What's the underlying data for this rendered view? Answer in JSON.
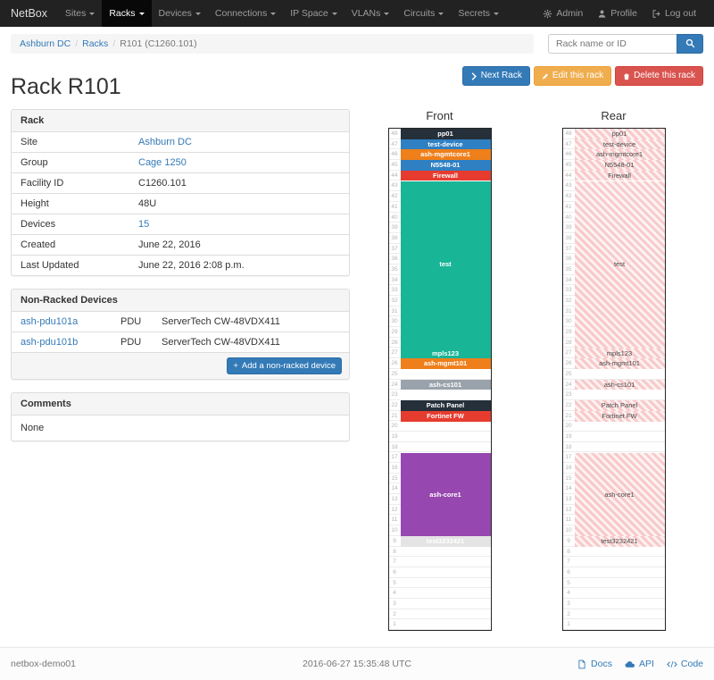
{
  "navbar": {
    "brand": "NetBox",
    "items": [
      {
        "label": "Sites",
        "active": false
      },
      {
        "label": "Racks",
        "active": true
      },
      {
        "label": "Devices",
        "active": false
      },
      {
        "label": "Connections",
        "active": false
      },
      {
        "label": "IP Space",
        "active": false
      },
      {
        "label": "VLANs",
        "active": false
      },
      {
        "label": "Circuits",
        "active": false
      },
      {
        "label": "Secrets",
        "active": false
      }
    ],
    "right_items": [
      {
        "label": "Admin",
        "icon": "gear-icon"
      },
      {
        "label": "Profile",
        "icon": "user-icon"
      },
      {
        "label": "Log out",
        "icon": "logout-icon"
      }
    ]
  },
  "breadcrumb": [
    "Ashburn DC",
    "Racks",
    "R101 (C1260.101)"
  ],
  "search": {
    "placeholder": "Rack name or ID"
  },
  "actions": {
    "next_label": "Next Rack",
    "edit_label": "Edit this rack",
    "delete_label": "Delete this rack"
  },
  "page_title": "Rack R101",
  "rack_panel": {
    "title": "Rack",
    "rows": [
      {
        "label": "Site",
        "value": "Ashburn DC",
        "is_link": true
      },
      {
        "label": "Group",
        "value": "Cage 1250",
        "is_link": true
      },
      {
        "label": "Facility ID",
        "value": "C1260.101",
        "is_link": false
      },
      {
        "label": "Height",
        "value": "48U",
        "is_link": false
      },
      {
        "label": "Devices",
        "value": "15",
        "is_link": true
      },
      {
        "label": "Created",
        "value": "June 22, 2016",
        "is_link": false
      },
      {
        "label": "Last Updated",
        "value": "June 22, 2016 2:08 p.m.",
        "is_link": false
      }
    ]
  },
  "non_racked_panel": {
    "title": "Non-Racked Devices",
    "devices": [
      {
        "name": "ash-pdu101a",
        "role": "PDU",
        "model": "ServerTech CW-48VDX411"
      },
      {
        "name": "ash-pdu101b",
        "role": "PDU",
        "model": "ServerTech CW-48VDX411"
      }
    ],
    "add_button_label": "Add a non-racked device"
  },
  "comments_panel": {
    "title": "Comments",
    "body": "None"
  },
  "elevations": {
    "front_title": "Front",
    "rear_title": "Rear",
    "total_units": 48,
    "devices": [
      {
        "name": "pp01",
        "top_unit": 48,
        "u_height": 1,
        "color": "#25303b"
      },
      {
        "name": "test-device",
        "top_unit": 47,
        "u_height": 1,
        "color": "#2f80c3"
      },
      {
        "name": "ash-mgmtcore1",
        "top_unit": 46,
        "u_height": 1,
        "color": "#ef7f1a"
      },
      {
        "name": "N5548-01",
        "top_unit": 45,
        "u_height": 1,
        "color": "#2f80c3"
      },
      {
        "name": "Firewall",
        "top_unit": 44,
        "u_height": 1,
        "color": "#e63c2f"
      },
      {
        "name": "test",
        "top_unit": 43,
        "u_height": 16,
        "color": "#19b597"
      },
      {
        "name": "mpls123",
        "top_unit": 27,
        "u_height": 1,
        "color": "#19b597"
      },
      {
        "name": "ash-mgmt101",
        "top_unit": 26,
        "u_height": 1,
        "color": "#ef7f1a"
      },
      {
        "name": "ash-cs101",
        "top_unit": 24,
        "u_height": 1,
        "color": "#9aa3ab"
      },
      {
        "name": "Patch Panel",
        "top_unit": 22,
        "u_height": 1,
        "color": "#25303b"
      },
      {
        "name": "Fortinet FW",
        "top_unit": 21,
        "u_height": 1,
        "color": "#e63c2f"
      },
      {
        "name": "ash-core1",
        "top_unit": 17,
        "u_height": 8,
        "color": "#9747b0"
      },
      {
        "name": "test3232421",
        "top_unit": 9,
        "u_height": 1,
        "color": "#e4e4e4"
      }
    ]
  },
  "footer": {
    "hostname": "netbox-demo01",
    "timestamp": "2016-06-27 15:35:48 UTC",
    "links": [
      {
        "label": "Docs",
        "icon": "docs-icon"
      },
      {
        "label": "API",
        "icon": "cloud-icon"
      },
      {
        "label": "Code",
        "icon": "code-icon"
      }
    ]
  }
}
